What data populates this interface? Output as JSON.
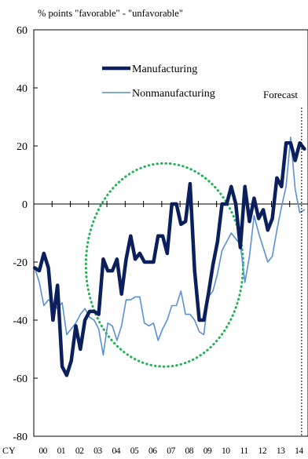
{
  "chart_data": {
    "type": "line",
    "title": "",
    "ylabel": "% points \"favorable\" - \"unfavorable\"",
    "xlabel": "",
    "x_axis_prefix": "CY",
    "ylim": [
      -80,
      60
    ],
    "yticks": [
      60,
      40,
      20,
      0,
      -20,
      -40,
      -60,
      -80
    ],
    "years": [
      "00",
      "01",
      "02",
      "03",
      "04",
      "05",
      "06",
      "07",
      "08",
      "09",
      "10",
      "11",
      "12",
      "13",
      "14"
    ],
    "x_range": [
      1999.45,
      2014.45
    ],
    "grid": false,
    "legend_position": "top-left",
    "annotation": "Forecast",
    "forecast_start": 2014.1,
    "highlight_ellipse": {
      "label": "",
      "x_center": 2006.6,
      "y_center": -21,
      "x_halfwidth": 4.3,
      "y_halfwidth": 35
    },
    "series": [
      {
        "name": "Manufacturing",
        "color": "#0b1f5c",
        "x": [
          1999.5,
          1999.75,
          2000.0,
          2000.25,
          2000.5,
          2000.75,
          2001.0,
          2001.25,
          2001.5,
          2001.75,
          2002.0,
          2002.25,
          2002.5,
          2002.75,
          2003.0,
          2003.25,
          2003.5,
          2003.75,
          2004.0,
          2004.25,
          2004.5,
          2004.75,
          2005.0,
          2005.25,
          2005.5,
          2005.75,
          2006.0,
          2006.25,
          2006.5,
          2006.75,
          2007.0,
          2007.25,
          2007.5,
          2007.75,
          2008.0,
          2008.25,
          2008.5,
          2008.75,
          2009.0,
          2009.25,
          2009.5,
          2009.75,
          2010.0,
          2010.25,
          2010.5,
          2010.75,
          2011.0,
          2011.25,
          2011.5,
          2011.75,
          2012.0,
          2012.25,
          2012.5,
          2012.75,
          2013.0,
          2013.25,
          2013.5,
          2013.75,
          2014.0,
          2014.25
        ],
        "values": [
          -22,
          -23,
          -17,
          -22,
          -40,
          -28,
          -56,
          -59,
          -54,
          -42,
          -50,
          -40,
          -37,
          -37,
          -38,
          -19,
          -23,
          -23,
          -19,
          -31,
          -19,
          -11,
          -19,
          -17,
          -20,
          -20,
          -20,
          -11,
          -11,
          -17,
          0,
          0,
          -7,
          -6,
          7,
          -23,
          -40,
          -40,
          -31,
          -21,
          -13,
          0,
          0,
          6,
          0,
          -15,
          6,
          -6,
          2,
          -5,
          -2,
          -9,
          -5,
          9,
          6,
          21,
          21,
          15,
          21,
          19
        ]
      },
      {
        "name": "Nonmanufacturing",
        "color": "#5b8fd3",
        "x": [
          1999.5,
          1999.75,
          2000.0,
          2000.25,
          2000.5,
          2000.75,
          2001.0,
          2001.25,
          2001.5,
          2001.75,
          2002.0,
          2002.25,
          2002.5,
          2002.75,
          2003.0,
          2003.25,
          2003.5,
          2003.75,
          2004.0,
          2004.25,
          2004.5,
          2004.75,
          2005.0,
          2005.25,
          2005.5,
          2005.75,
          2006.0,
          2006.25,
          2006.5,
          2006.75,
          2007.0,
          2007.25,
          2007.5,
          2007.75,
          2008.0,
          2008.25,
          2008.5,
          2008.75,
          2009.0,
          2009.25,
          2009.5,
          2009.75,
          2010.0,
          2010.25,
          2010.5,
          2010.75,
          2011.0,
          2011.25,
          2011.5,
          2011.75,
          2012.0,
          2012.25,
          2012.5,
          2012.75,
          2013.0,
          2013.25,
          2013.5,
          2013.75,
          2014.0,
          2014.25
        ],
        "values": [
          -22,
          -27,
          -35,
          -33,
          -34,
          -36,
          -34,
          -45,
          -43,
          -41,
          -38,
          -36,
          -39,
          -40,
          -43,
          -52,
          -41,
          -42,
          -47,
          -42,
          -33,
          -33,
          -32,
          -32,
          -41,
          -42,
          -41,
          -47,
          -43,
          -40,
          -35,
          -35,
          -30,
          -38,
          -38,
          -40,
          -44,
          -45,
          -32,
          -30,
          -24,
          -16,
          -13,
          -10,
          -12,
          -14,
          -27,
          -18,
          -4,
          -10,
          -15,
          -20,
          -18,
          -9,
          -1,
          6,
          23,
          5,
          -3,
          -2
        ]
      }
    ]
  }
}
